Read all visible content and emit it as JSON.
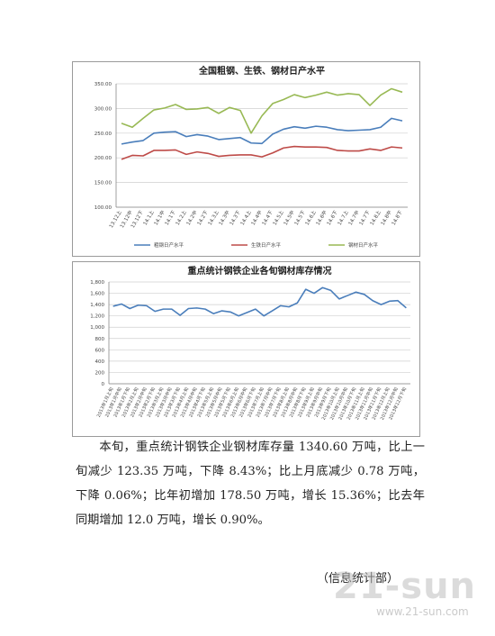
{
  "chart_data": [
    {
      "type": "line",
      "title": "全国粗钢、生铁、钢材日产水平",
      "categories": [
        "13.12上",
        "13.12中",
        "13.12下",
        "14.1上",
        "14.1中",
        "14.1下",
        "14.2上",
        "14.2中",
        "14.2下",
        "14.3上",
        "14.3中",
        "14.3下",
        "14.4上",
        "14.4中",
        "14.4下",
        "14.5上",
        "14.5中",
        "14.5下",
        "14.6上",
        "14.6中",
        "14.6下",
        "14.7上",
        "14.7中",
        "14.7下",
        "14.8上",
        "14.8中",
        "14.8下"
      ],
      "series": [
        {
          "name": "粗钢日产水平",
          "color": "#4a7ebb",
          "values": [
            228,
            232,
            235,
            250,
            252,
            253,
            243,
            247,
            244,
            237,
            239,
            241,
            230,
            229,
            248,
            258,
            263,
            260,
            264,
            262,
            257,
            255,
            256,
            257,
            262,
            280,
            275
          ]
        },
        {
          "name": "生铁日产水平",
          "color": "#be4b48",
          "values": [
            197,
            205,
            204,
            215,
            215,
            216,
            207,
            212,
            209,
            203,
            205,
            206,
            206,
            202,
            210,
            220,
            223,
            222,
            222,
            221,
            215,
            214,
            214,
            218,
            215,
            222,
            220
          ]
        },
        {
          "name": "钢材日产水平",
          "color": "#98b954",
          "values": [
            270,
            262,
            280,
            297,
            301,
            308,
            298,
            299,
            302,
            290,
            302,
            296,
            250,
            285,
            310,
            318,
            328,
            322,
            327,
            333,
            327,
            330,
            328,
            306,
            327,
            340,
            333
          ]
        }
      ],
      "ylim": [
        100,
        350
      ],
      "yticks": [
        {
          "value": 100,
          "label": "100.00"
        },
        {
          "value": 150,
          "label": "150.00"
        },
        {
          "value": 200,
          "label": "200.00"
        },
        {
          "value": 250,
          "label": "250.00"
        },
        {
          "value": 300,
          "label": "300.00"
        },
        {
          "value": 350,
          "label": "350.00"
        }
      ],
      "grid": true,
      "legend": "bottom"
    },
    {
      "type": "line",
      "title": "重点统计钢铁企业各旬钢材库存情况",
      "categories": [
        "2013年1月上旬",
        "2013年1月中旬",
        "2013年1月下旬",
        "2013年2月上旬",
        "2013年2月中旬",
        "2013年2月下旬",
        "2013年3月上旬",
        "2013年3月中旬",
        "2013年3月下旬",
        "2013年4月上旬",
        "2013年4月中旬",
        "2013年4月下旬",
        "2013年5月上旬",
        "2013年5月中旬",
        "2013年5月下旬",
        "2013年6月上旬",
        "2013年6月中旬",
        "2013年6月下旬",
        "2013年7月上旬",
        "2013年7月中旬",
        "2013年7月下旬",
        "2013年8月上旬",
        "2013年8月中旬",
        "2013年8月下旬",
        "2013年9月上旬",
        "2013年9月中旬",
        "2013年9月下旬",
        "2013年10月上旬",
        "2013年10月中旬",
        "2013年10月下旬",
        "2013年11月上旬",
        "2013年11月中旬",
        "2013年11月下旬",
        "2013年12月上旬",
        "2013年12月中旬",
        "2013年12月下旬"
      ],
      "series": [
        {
          "name": "钢材库存",
          "color": "#4a7ebb",
          "values": [
            1370,
            1410,
            1330,
            1390,
            1380,
            1280,
            1320,
            1320,
            1210,
            1330,
            1340,
            1320,
            1240,
            1290,
            1270,
            1200,
            1260,
            1320,
            1200,
            1290,
            1380,
            1360,
            1430,
            1670,
            1600,
            1700,
            1650,
            1500,
            1560,
            1620,
            1580,
            1470,
            1400,
            1460,
            1470,
            1341
          ]
        }
      ],
      "ylim": [
        0,
        1800
      ],
      "yticks": [
        0,
        200,
        400,
        600,
        800,
        {
          "value": 1000,
          "label": "1,000"
        },
        {
          "value": 1200,
          "label": "1,200"
        },
        {
          "value": 1400,
          "label": "1,400"
        },
        {
          "value": 1600,
          "label": "1,600"
        },
        {
          "value": 1800,
          "label": "1,800"
        }
      ],
      "grid": true
    }
  ],
  "document": {
    "paragraph": "本旬，重点统计钢铁企业钢材库存量 1340.60 万吨，比上一旬减少 123.35 万吨，下降 8.43%；比上月底减少 0.78 万吨，下降 0.06%；比年初增加 178.50 万吨，增长 15.36%；比去年同期增加 12.0 万吨，增长 0.90%。",
    "signature": "（信息统计部）"
  },
  "watermark": {
    "logo": "21-sun",
    "url": "www.21-sun.com"
  }
}
